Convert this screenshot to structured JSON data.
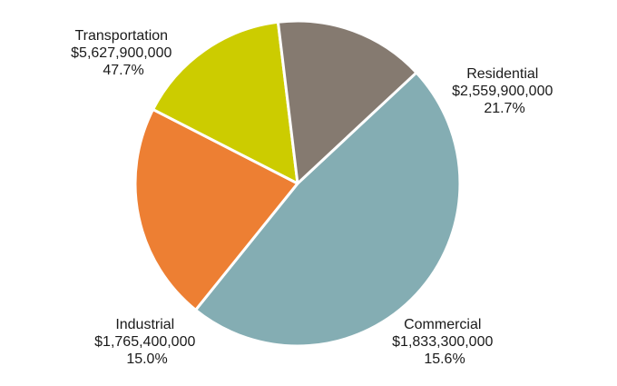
{
  "chart_data": {
    "type": "pie",
    "slices": [
      {
        "name": "Transportation",
        "value": 5627900000,
        "value_label": "$5,627,900,000",
        "percent_label": "47.7%",
        "color": "#84adb3"
      },
      {
        "name": "Residential",
        "value": 2559900000,
        "value_label": "$2,559,900,000",
        "percent_label": "21.7%",
        "color": "#ed7f33"
      },
      {
        "name": "Commercial",
        "value": 1833300000,
        "value_label": "$1,833,300,000",
        "percent_label": "15.6%",
        "color": "#cccc00"
      },
      {
        "name": "Industrial",
        "value": 1765400000,
        "value_label": "$1,765,400,000",
        "percent_label": "15.0%",
        "color": "#857a70"
      }
    ]
  }
}
